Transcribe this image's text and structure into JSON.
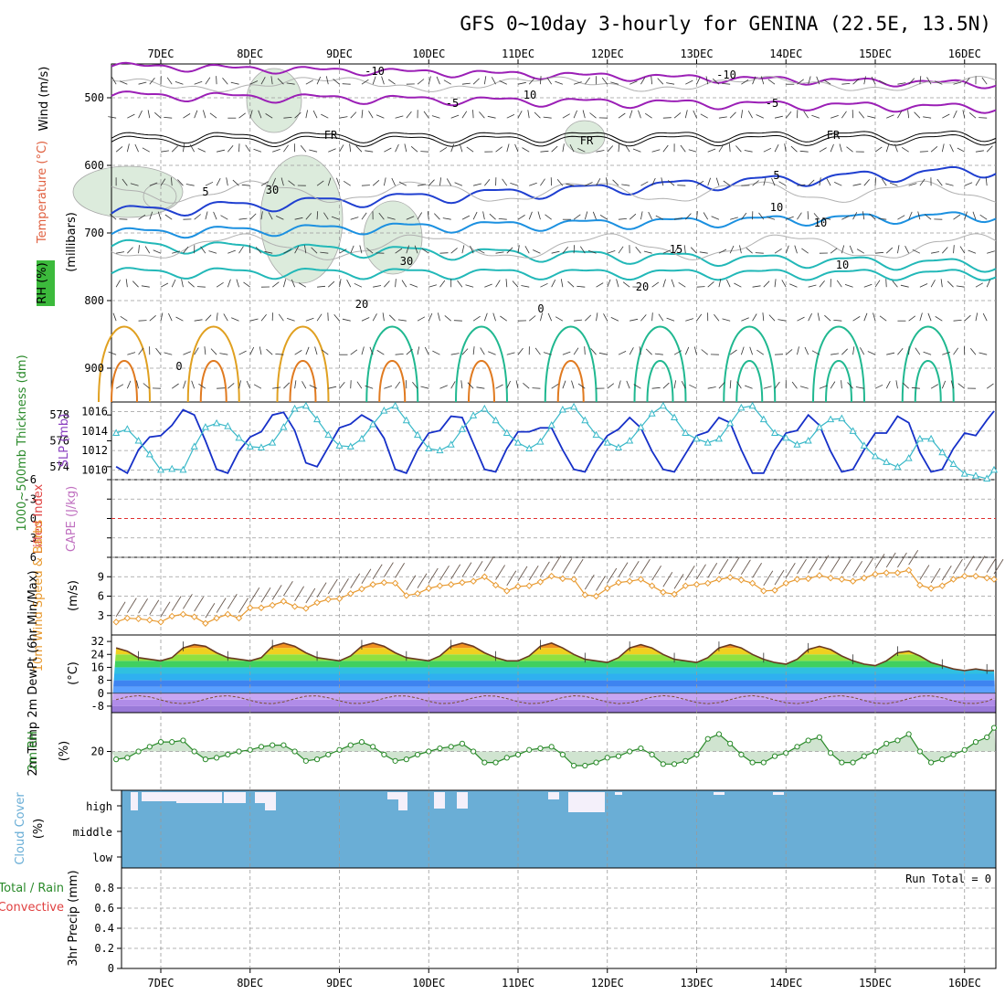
{
  "title": "GFS 0~10day 3-hourly for GENINA (22.5E, 13.5N)",
  "dates": [
    "7DEC",
    "8DEC",
    "9DEC",
    "10DEC",
    "11DEC",
    "12DEC",
    "13DEC",
    "14DEC",
    "15DEC",
    "16DEC"
  ],
  "colors": {
    "temp_purple": "#9b1fb6",
    "temp_blue": "#1f3fd0",
    "temp_lightblue": "#1b90e0",
    "temp_teal": "#22b8b8",
    "temp_green": "#20b890",
    "temp_orange": "#e0a020",
    "thickness": "#1630c8",
    "slp": "#38b8c8",
    "wind10": "#e89a30",
    "rh_green": "#2a8a2a",
    "cloud": "#6aaed6",
    "cape_red": "#e03030"
  },
  "panels": {
    "upper": {
      "ylabel_wind": "Wind (m/s)",
      "ylabel_temp": "Temperature (°C)",
      "ylabel_rh": "RH (%)",
      "ylabel_p": "(millibars)",
      "yticks": [
        "500",
        "600",
        "700",
        "800",
        "900"
      ],
      "contour_labels": [
        "-10",
        "-10",
        "-5",
        "-5",
        "FR",
        "FR",
        "FR",
        "5",
        "5",
        "10",
        "15",
        "20",
        "20",
        "10",
        "30",
        "30",
        "10",
        "10",
        "0",
        "0"
      ]
    },
    "thickness": {
      "ylabel_left": "1000~500mb Thickness (dm)",
      "ylabel_right": "SLP (mb)",
      "yticks_left": [
        "578",
        "576",
        "574"
      ],
      "yticks_right": [
        "1016",
        "1014",
        "1012",
        "1010"
      ]
    },
    "li": {
      "ylabel_left": "Lifted Index",
      "ylabel_right": "CAPE (J/kg)",
      "yticks": [
        "-6",
        "-3",
        "0",
        "3",
        "6"
      ]
    },
    "wind10": {
      "ylabel": "10m Wind Speed & Barbs",
      "unit": "(m/s)",
      "yticks": [
        "9",
        "6",
        "3"
      ]
    },
    "temp2m": {
      "ylabel": "2m Temp 2m DewPt (6hr Min/Max)",
      "unit": "(°C)",
      "yticks": [
        "32",
        "24",
        "16",
        "8",
        "0",
        "-8"
      ]
    },
    "rh2m": {
      "ylabel": "2m RH",
      "unit": "(%)",
      "yticks": [
        "20"
      ]
    },
    "cloud": {
      "ylabel": "Cloud Cover",
      "unit": "(%)",
      "levels": [
        "high",
        "middle",
        "low"
      ]
    },
    "precip": {
      "ylabel_a": "Total / Rain",
      "ylabel_b": "Convective",
      "ylabel_c": "3hr Precip (mm)",
      "yticks": [
        "0.8",
        "0.6",
        "0.4",
        "0.2",
        "0"
      ],
      "run_total": "Run Total = 0"
    }
  },
  "chart_data": {
    "type": "line",
    "x": [
      "6DEC 12Z",
      "6DEC 15Z",
      "6DEC 18Z",
      "6DEC 21Z",
      "7DEC 00Z",
      "7DEC 03Z",
      "7DEC 06Z",
      "7DEC 09Z",
      "7DEC 12Z",
      "7DEC 15Z",
      "7DEC 18Z",
      "7DEC 21Z",
      "8DEC 00Z",
      "8DEC 03Z",
      "8DEC 06Z",
      "8DEC 09Z",
      "8DEC 12Z",
      "8DEC 15Z",
      "8DEC 18Z",
      "8DEC 21Z",
      "9DEC 00Z",
      "9DEC 03Z",
      "9DEC 06Z",
      "9DEC 09Z",
      "9DEC 12Z",
      "9DEC 15Z",
      "9DEC 18Z",
      "9DEC 21Z",
      "10DEC 00Z",
      "10DEC 03Z",
      "10DEC 06Z",
      "10DEC 09Z",
      "10DEC 12Z",
      "10DEC 15Z",
      "10DEC 18Z",
      "10DEC 21Z",
      "11DEC 00Z",
      "11DEC 03Z",
      "11DEC 06Z",
      "11DEC 09Z",
      "11DEC 12Z",
      "11DEC 15Z",
      "11DEC 18Z",
      "11DEC 21Z",
      "12DEC 00Z",
      "12DEC 03Z",
      "12DEC 06Z",
      "12DEC 09Z",
      "12DEC 12Z",
      "12DEC 15Z",
      "12DEC 18Z",
      "12DEC 21Z",
      "13DEC 00Z",
      "13DEC 03Z",
      "13DEC 06Z",
      "13DEC 09Z",
      "13DEC 12Z",
      "13DEC 15Z",
      "13DEC 18Z",
      "13DEC 21Z",
      "14DEC 00Z",
      "14DEC 03Z",
      "14DEC 06Z",
      "14DEC 09Z",
      "14DEC 12Z",
      "14DEC 15Z",
      "14DEC 18Z",
      "14DEC 21Z",
      "15DEC 00Z",
      "15DEC 03Z",
      "15DEC 06Z",
      "15DEC 09Z",
      "15DEC 12Z",
      "15DEC 15Z",
      "15DEC 18Z",
      "15DEC 21Z",
      "16DEC 00Z",
      "16DEC 03Z",
      "16DEC 06Z",
      "16DEC 09Z"
    ],
    "series": [
      {
        "name": "1000~500mb Thickness (dm)",
        "values": [
          574.0,
          573.5,
          575.3,
          576.3,
          576.4,
          577.2,
          578.4,
          578.0,
          576.0,
          573.8,
          573.5,
          575.2,
          576.3,
          576.7,
          578.0,
          578.2,
          576.8,
          574.3,
          574.0,
          575.5,
          577.0,
          577.3,
          578.0,
          577.5,
          576.2,
          573.8,
          573.5,
          575.3,
          576.6,
          576.8,
          577.9,
          577.8,
          575.8,
          573.8,
          573.6,
          575.4,
          576.7,
          576.7,
          577.0,
          577.0,
          575.3,
          573.8,
          573.6,
          575.2,
          576.4,
          576.9,
          577.8,
          577.0,
          575.2,
          573.8,
          573.6,
          575.0,
          576.4,
          576.7,
          577.8,
          577.4,
          575.3,
          573.5,
          573.5,
          575.3,
          576.6,
          576.8,
          578.0,
          577.2,
          575.2,
          573.6,
          573.8,
          575.3,
          576.6,
          576.6,
          577.9,
          577.4,
          575.1,
          573.6,
          573.8,
          575.4,
          576.6,
          576.4,
          577.6,
          578.3
        ]
      },
      {
        "name": "SLP (mb)",
        "values": [
          1013.8,
          1014.2,
          1013.0,
          1011.6,
          1010.0,
          1010.1,
          1010.0,
          1012.4,
          1014.4,
          1014.8,
          1014.5,
          1013.3,
          1012.4,
          1012.3,
          1012.8,
          1014.4,
          1016.3,
          1016.6,
          1015.2,
          1013.6,
          1012.5,
          1012.4,
          1013.2,
          1014.7,
          1016.1,
          1016.6,
          1015.1,
          1013.6,
          1012.2,
          1012.0,
          1012.6,
          1014.2,
          1015.6,
          1016.3,
          1015.1,
          1013.8,
          1012.8,
          1012.2,
          1012.9,
          1014.6,
          1016.2,
          1016.5,
          1015.1,
          1013.6,
          1012.8,
          1012.3,
          1013.0,
          1014.4,
          1015.8,
          1016.6,
          1015.4,
          1013.8,
          1013.2,
          1012.8,
          1013.2,
          1014.8,
          1016.4,
          1016.6,
          1015.2,
          1013.8,
          1013.3,
          1012.6,
          1013.0,
          1014.4,
          1015.2,
          1015.3,
          1014.0,
          1012.5,
          1011.4,
          1010.8,
          1010.3,
          1011.2,
          1013.2,
          1013.2,
          1011.8,
          1010.6,
          1009.6,
          1009.4,
          1009.1,
          1010.0
        ]
      },
      {
        "name": "10m Wind Speed",
        "values": [
          2.0,
          2.6,
          2.5,
          2.3,
          2.0,
          2.9,
          3.2,
          2.8,
          1.8,
          2.6,
          3.2,
          2.6,
          4.2,
          4.2,
          4.6,
          5.2,
          4.4,
          4.1,
          5.0,
          5.5,
          5.6,
          6.4,
          7.1,
          7.8,
          8.1,
          8.0,
          6.1,
          6.4,
          7.2,
          7.6,
          7.8,
          8.1,
          8.3,
          9.0,
          7.7,
          6.8,
          7.5,
          7.6,
          8.2,
          9.1,
          8.7,
          8.6,
          6.2,
          6.0,
          7.2,
          8.1,
          8.3,
          8.6,
          7.6,
          6.6,
          6.3,
          7.6,
          7.8,
          8.0,
          8.6,
          8.9,
          8.5,
          8.0,
          6.8,
          6.9,
          8.0,
          8.6,
          8.7,
          9.2,
          8.8,
          8.6,
          8.3,
          8.8,
          9.4,
          9.6,
          9.6,
          10.0,
          7.7,
          7.2,
          7.6,
          8.6,
          9.1,
          9.1,
          8.8,
          8.6
        ]
      },
      {
        "name": "2m Temp",
        "values": [
          28,
          26,
          22,
          21,
          20,
          22,
          28,
          30,
          29,
          25,
          22,
          21,
          20,
          22,
          29,
          31,
          29,
          25,
          22,
          21,
          20,
          23,
          29,
          31,
          29,
          25,
          22,
          21,
          20,
          23,
          29,
          31,
          29,
          25,
          22,
          20,
          20,
          23,
          29,
          31,
          28,
          24,
          21,
          20,
          19,
          22,
          28,
          30,
          28,
          24,
          21,
          20,
          19,
          22,
          28,
          30,
          28,
          24,
          21,
          19,
          18,
          21,
          27,
          29,
          27,
          23,
          20,
          18,
          17,
          20,
          25,
          26,
          23,
          19,
          17,
          15,
          14,
          15,
          14,
          14
        ]
      },
      {
        "name": "2m RH",
        "values": [
          15,
          16,
          20,
          23,
          26,
          26,
          27,
          20,
          15,
          16,
          18,
          20,
          21,
          23,
          24,
          24,
          20,
          14,
          15,
          18,
          21,
          24,
          26,
          23,
          18,
          14,
          15,
          18,
          20,
          22,
          23,
          25,
          20,
          13,
          13,
          16,
          18,
          21,
          22,
          23,
          18,
          11,
          11,
          13,
          16,
          17,
          20,
          22,
          18,
          12,
          12,
          14,
          18,
          28,
          31,
          25,
          18,
          13,
          13,
          17,
          19,
          23,
          27,
          29,
          19,
          13,
          13,
          17,
          20,
          25,
          27,
          31,
          20,
          13,
          15,
          18,
          21,
          26,
          29,
          35
        ]
      },
      {
        "name": "3hr Precip (mm)",
        "values": [
          0,
          0,
          0,
          0,
          0,
          0,
          0,
          0,
          0,
          0,
          0,
          0,
          0,
          0,
          0,
          0,
          0,
          0,
          0,
          0,
          0,
          0,
          0,
          0,
          0,
          0,
          0,
          0,
          0,
          0,
          0,
          0,
          0,
          0,
          0,
          0,
          0,
          0,
          0,
          0,
          0,
          0,
          0,
          0,
          0,
          0,
          0,
          0,
          0,
          0,
          0,
          0,
          0,
          0,
          0,
          0,
          0,
          0,
          0,
          0,
          0,
          0,
          0,
          0,
          0,
          0,
          0,
          0,
          0,
          0,
          0,
          0,
          0,
          0,
          0,
          0,
          0,
          0,
          0,
          0
        ]
      }
    ],
    "slp_ylim": [
      1009,
      1017
    ],
    "thickness_ylim": [
      573,
      579
    ],
    "wind_ylim": [
      0,
      12
    ],
    "temp_ylim": [
      -12,
      36
    ],
    "grid": true
  }
}
